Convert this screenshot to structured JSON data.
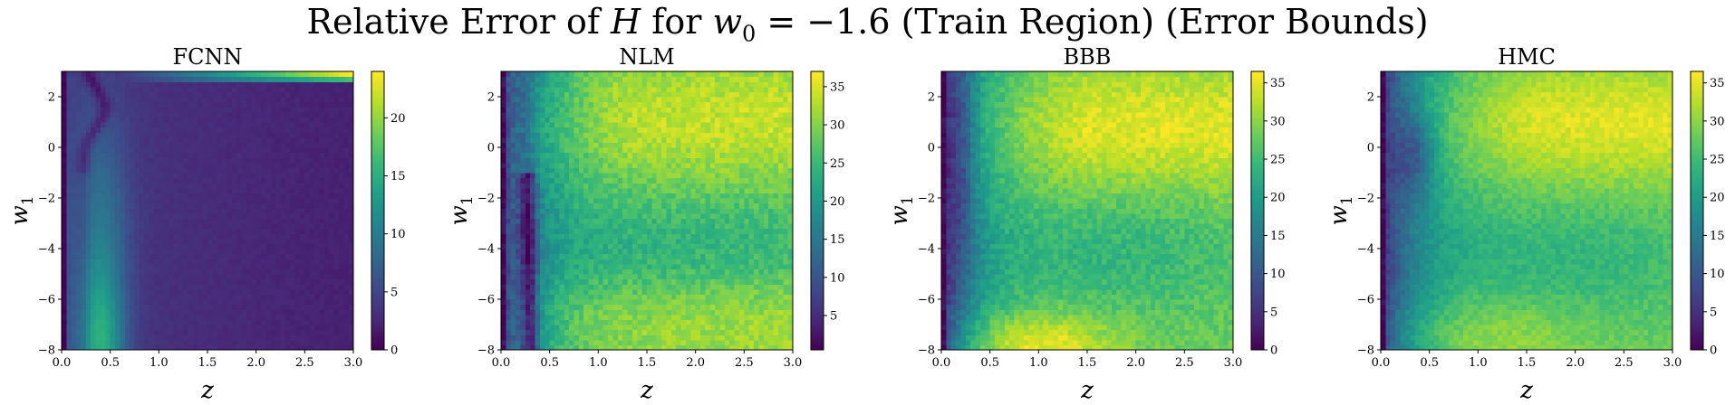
{
  "figure": {
    "suptitle_parts": {
      "pre": "Relative Error of ",
      "var": "H",
      "mid": " for ",
      "math": "w",
      "sub": "0",
      "post": " = −1.6 (Train Region) (Error Bounds)"
    }
  },
  "chart_data": [
    {
      "type": "heatmap",
      "title": "FCNN",
      "xlabel": "z",
      "ylabel": "w",
      "ylabel_sub": "1",
      "xlim": [
        0.0,
        3.0
      ],
      "ylim": [
        -8,
        3
      ],
      "xticks": [
        "0.0",
        "0.5",
        "1.0",
        "1.5",
        "2.0",
        "2.5",
        "3.0"
      ],
      "yticks": [
        "−8",
        "−6",
        "−4",
        "−2",
        "0",
        "2"
      ],
      "colorbar": {
        "min": 0,
        "max": 24,
        "ticks": [
          "0",
          "5",
          "10",
          "15",
          "20"
        ]
      },
      "colormap": "viridis"
    },
    {
      "type": "heatmap",
      "title": "NLM",
      "xlabel": "z",
      "ylabel": "w",
      "ylabel_sub": "1",
      "xlim": [
        0.0,
        3.0
      ],
      "ylim": [
        -8,
        3
      ],
      "xticks": [
        "0.0",
        "0.5",
        "1.0",
        "1.5",
        "2.0",
        "2.5",
        "3.0"
      ],
      "yticks": [
        "−8",
        "−6",
        "−4",
        "−2",
        "0",
        "2"
      ],
      "colorbar": {
        "min": 0.5,
        "max": 37,
        "ticks": [
          "5",
          "10",
          "15",
          "20",
          "25",
          "30",
          "35"
        ]
      },
      "colormap": "viridis"
    },
    {
      "type": "heatmap",
      "title": "BBB",
      "xlabel": "z",
      "ylabel": "w",
      "ylabel_sub": "1",
      "xlim": [
        0.0,
        3.0
      ],
      "ylim": [
        -8,
        3
      ],
      "xticks": [
        "0.0",
        "0.5",
        "1.0",
        "1.5",
        "2.0",
        "2.5",
        "3.0"
      ],
      "yticks": [
        "−8",
        "−6",
        "−4",
        "−2",
        "0",
        "2"
      ],
      "colorbar": {
        "min": 0,
        "max": 36.5,
        "ticks": [
          "0",
          "5",
          "10",
          "15",
          "20",
          "25",
          "30",
          "35"
        ]
      },
      "colormap": "viridis"
    },
    {
      "type": "heatmap",
      "title": "HMC",
      "xlabel": "z",
      "ylabel": "w",
      "ylabel_sub": "1",
      "xlim": [
        0.0,
        3.0
      ],
      "ylim": [
        -8,
        3
      ],
      "xticks": [
        "0.0",
        "0.5",
        "1.0",
        "1.5",
        "2.0",
        "2.5",
        "3.0"
      ],
      "yticks": [
        "−8",
        "−6",
        "−4",
        "−2",
        "0",
        "2"
      ],
      "colorbar": {
        "min": 0,
        "max": 36.5,
        "ticks": [
          "0",
          "5",
          "10",
          "15",
          "20",
          "25",
          "30",
          "35"
        ]
      },
      "colormap": "viridis"
    }
  ]
}
